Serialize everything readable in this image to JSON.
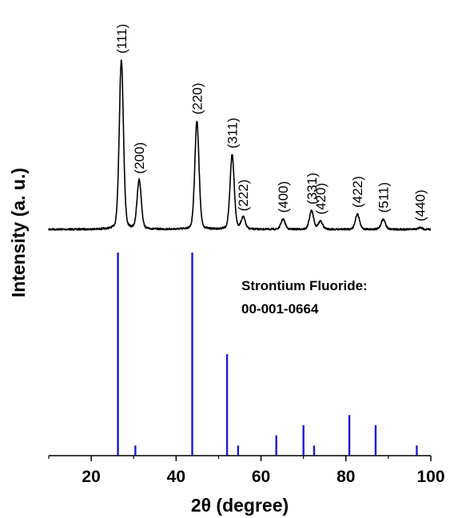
{
  "chart_data": {
    "type": "line",
    "xlabel": "2θ (degree)",
    "ylabel": "Intensity (a. u.)",
    "xlim": [
      10,
      100
    ],
    "xticks": [
      "20",
      "40",
      "60",
      "80",
      "100"
    ],
    "grid": false,
    "legend": "none",
    "series": [
      {
        "color": "#000000",
        "style": "line",
        "peaks": [
          {
            "x": 27.1,
            "height": 1.0,
            "hkl": "(111)"
          },
          {
            "x": 31.3,
            "height": 0.29,
            "hkl": "(200)"
          },
          {
            "x": 44.9,
            "height": 0.64,
            "hkl": "(220)"
          },
          {
            "x": 53.2,
            "height": 0.44,
            "hkl": "(311)"
          },
          {
            "x": 55.8,
            "height": 0.07,
            "hkl": "(222)"
          },
          {
            "x": 65.2,
            "height": 0.06,
            "hkl": "(400)"
          },
          {
            "x": 71.9,
            "height": 0.11,
            "hkl": "(331)"
          },
          {
            "x": 74.0,
            "height": 0.05,
            "hkl": "(420)"
          },
          {
            "x": 82.7,
            "height": 0.09,
            "hkl": "(422)"
          },
          {
            "x": 88.8,
            "height": 0.06,
            "hkl": "(511)"
          },
          {
            "x": 97.5,
            "height": 0.01,
            "hkl": "(440)"
          }
        ]
      },
      {
        "name": "Strontium Fluoride: 00-001-0664",
        "color": "#1a1ad8",
        "style": "stick",
        "x": [
          26.3,
          30.4,
          43.8,
          52.0,
          54.6,
          63.6,
          70.0,
          72.5,
          80.8,
          87.0,
          96.7
        ],
        "values": [
          1.0,
          0.05,
          1.0,
          0.5,
          0.05,
          0.1,
          0.15,
          0.05,
          0.2,
          0.15,
          0.05
        ]
      }
    ]
  },
  "reference": {
    "title_line1": "Strontium Fluoride:",
    "title_line2": "00-001-0664"
  }
}
